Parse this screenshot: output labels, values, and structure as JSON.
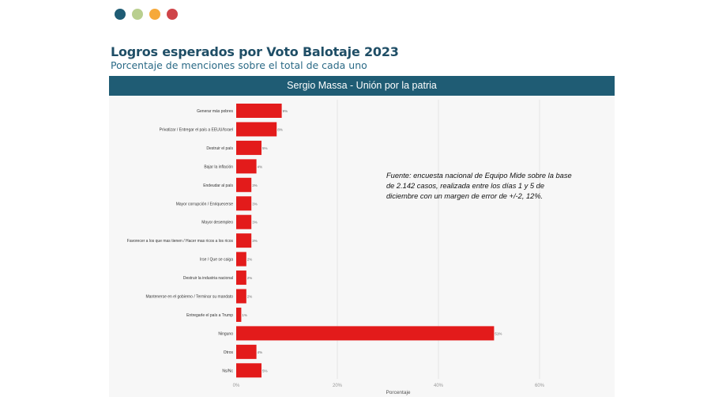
{
  "header": {
    "dots": [
      "#1f5c74",
      "#b9cf8f",
      "#f6a93a",
      "#cf4449"
    ]
  },
  "title": "Logros esperados por Voto Balotaje 2023",
  "subtitle": "Porcentaje de menciones sobre el total de cada uno",
  "band_title": "Sergio Massa - Unión por la patria",
  "note": "Fuente: encuesta nacional de Equipo Mide sobre la base de 2.142 casos, realizada entre los días 1 y 5 de diciembre con un margen de error de +/-2, 12%.",
  "chart_data": {
    "type": "bar",
    "orientation": "horizontal",
    "categories": [
      "Generar más pobres",
      "Privatizar / Entregar el país a EEUU/Israel",
      "Destruir el país",
      "Bajar la inflación",
      "Endeudar al país",
      "Mayor corrupción / Enriquecerse",
      "Mayor desempleo",
      "Favorecer a los que mas tienen / Hacer mas ricos a los ricos",
      "Irse / Que se caiga",
      "Destruir la industria nacional",
      "Mantenerse en el gobierno / Terminar su mandato",
      "Entregarle el país a Trump",
      "Ninguno",
      "Otros",
      "Ns/Nc"
    ],
    "values": [
      9,
      8,
      5,
      4,
      3,
      3,
      3,
      3,
      2,
      2,
      2,
      1,
      51,
      4,
      5
    ],
    "data_labels": [
      "9%",
      "8%",
      "5%",
      "4%",
      "3%",
      "3%",
      "3%",
      "3%",
      "2%",
      "2%",
      "2%",
      "1%",
      "51%",
      "4%",
      "5%"
    ],
    "xlabel": "Porcentaje",
    "xticks": [
      "0%",
      "20%",
      "40%",
      "60%"
    ],
    "xlim": [
      0,
      70
    ],
    "grid": "vertical",
    "bar_color": "#e31b1b"
  }
}
